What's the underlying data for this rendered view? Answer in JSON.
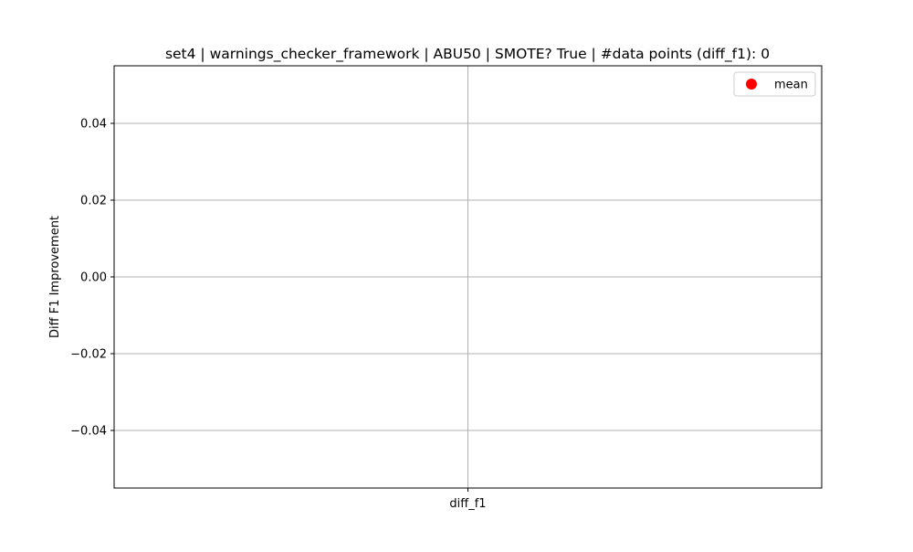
{
  "chart_data": {
    "type": "scatter",
    "title": "set4 | warnings_checker_framework | ABU50 | SMOTE? True | #data points (diff_f1): 0",
    "xlabel": "",
    "ylabel": "Diff F1 Improvement",
    "categories": [
      "diff_f1"
    ],
    "ylim": [
      -0.055,
      0.055
    ],
    "y_ticks": [
      0.04,
      0.02,
      0.0,
      -0.02,
      -0.04
    ],
    "y_tick_labels": [
      "0.04",
      "0.02",
      "0.00",
      "−0.02",
      "−0.04"
    ],
    "grid": true,
    "legend_position": "top-right",
    "series": [
      {
        "name": "mean",
        "color": "#ff0000",
        "marker": "circle",
        "values": []
      }
    ]
  }
}
